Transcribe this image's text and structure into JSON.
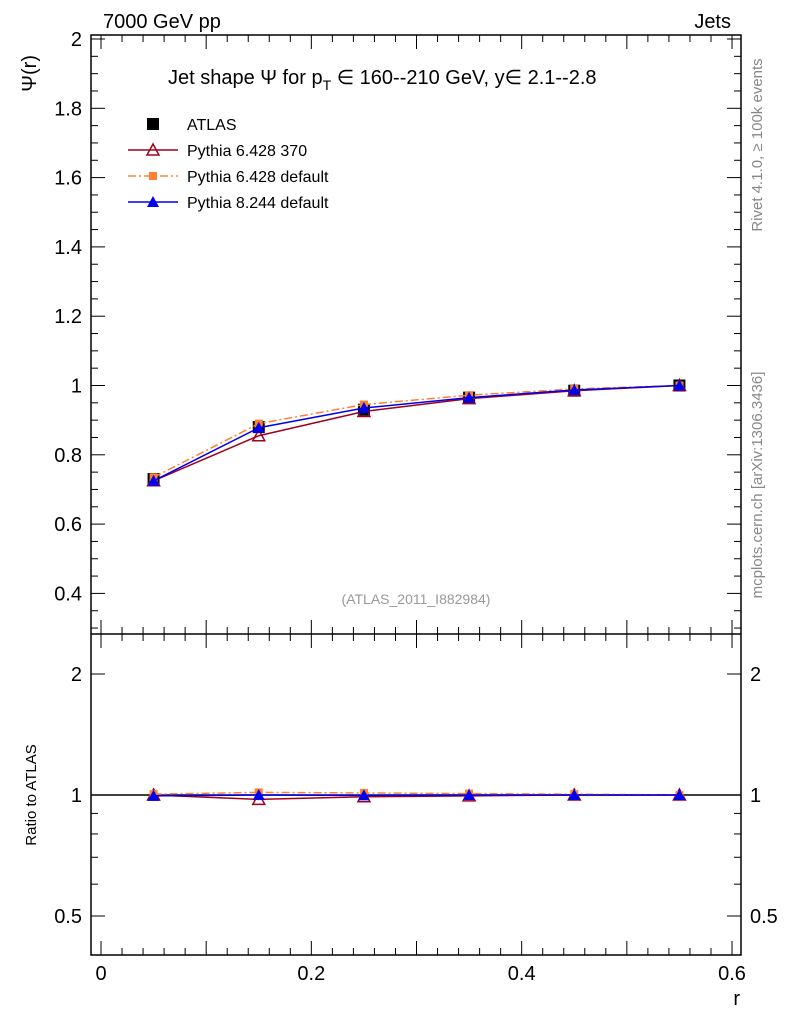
{
  "header": {
    "left": "7000 GeV pp",
    "right": "Jets"
  },
  "side_labels": {
    "rivet": "Rivet 4.1.0, ≥ 100k events",
    "mcplots": "mcplots.cern.ch [arXiv:1306.3436]"
  },
  "chart_data": [
    {
      "type": "line",
      "title": "Jet shape Ψ for p_T ∈ 160--210 GeV, y∈ 2.1--2.8",
      "title_parts": {
        "a": "Jet shape Ψ for p",
        "sub": "T",
        "b": " ∈ 160--210 GeV, y∈ 2.1--2.8"
      },
      "ylabel": "Ψ(r)",
      "xlabel": "r",
      "xlim": [
        0,
        0.6
      ],
      "ylim": [
        0.28,
        2.0
      ],
      "watermark": "(ATLAS_2011_I882984)",
      "xticks": [
        "0",
        "0.2",
        "0.4",
        "0.6"
      ],
      "yticks": [
        "0.4",
        "0.6",
        "0.8",
        "1",
        "1.2",
        "1.4",
        "1.6",
        "1.8",
        "2"
      ],
      "x": [
        0.05,
        0.15,
        0.25,
        0.35,
        0.45,
        0.55
      ],
      "series": [
        {
          "name": "ATLAS",
          "color": "#000000",
          "marker": "square",
          "values": [
            0.73,
            0.88,
            0.93,
            0.965,
            0.985,
            1.0
          ]
        },
        {
          "name": "Pythia 6.428 370",
          "color": "#a00020",
          "marker": "open-triangle",
          "values": [
            0.725,
            0.855,
            0.925,
            0.962,
            0.985,
            1.0
          ]
        },
        {
          "name": "Pythia 6.428 default",
          "color": "#ff8030",
          "marker": "square-small",
          "dash": true,
          "values": [
            0.735,
            0.89,
            0.945,
            0.972,
            0.99,
            1.0
          ]
        },
        {
          "name": "Pythia 8.244 default",
          "color": "#0000ee",
          "marker": "triangle",
          "values": [
            0.725,
            0.878,
            0.935,
            0.965,
            0.987,
            1.0
          ]
        }
      ]
    },
    {
      "type": "line",
      "ylabel": "Ratio to ATLAS",
      "scale": "log",
      "ylim": [
        0.4,
        2.5
      ],
      "yticks": [
        "0.5",
        "1",
        "2"
      ],
      "series": [
        {
          "name": "Pythia 6.428 370",
          "values": [
            1.0,
            0.975,
            0.99,
            0.995,
            1.0,
            1.0
          ]
        },
        {
          "name": "Pythia 6.428 default",
          "values": [
            1.005,
            1.015,
            1.012,
            1.008,
            1.005,
            1.0
          ]
        },
        {
          "name": "Pythia 8.244 default",
          "values": [
            0.995,
            1.0,
            0.998,
            1.0,
            1.0,
            1.0
          ]
        }
      ]
    }
  ]
}
